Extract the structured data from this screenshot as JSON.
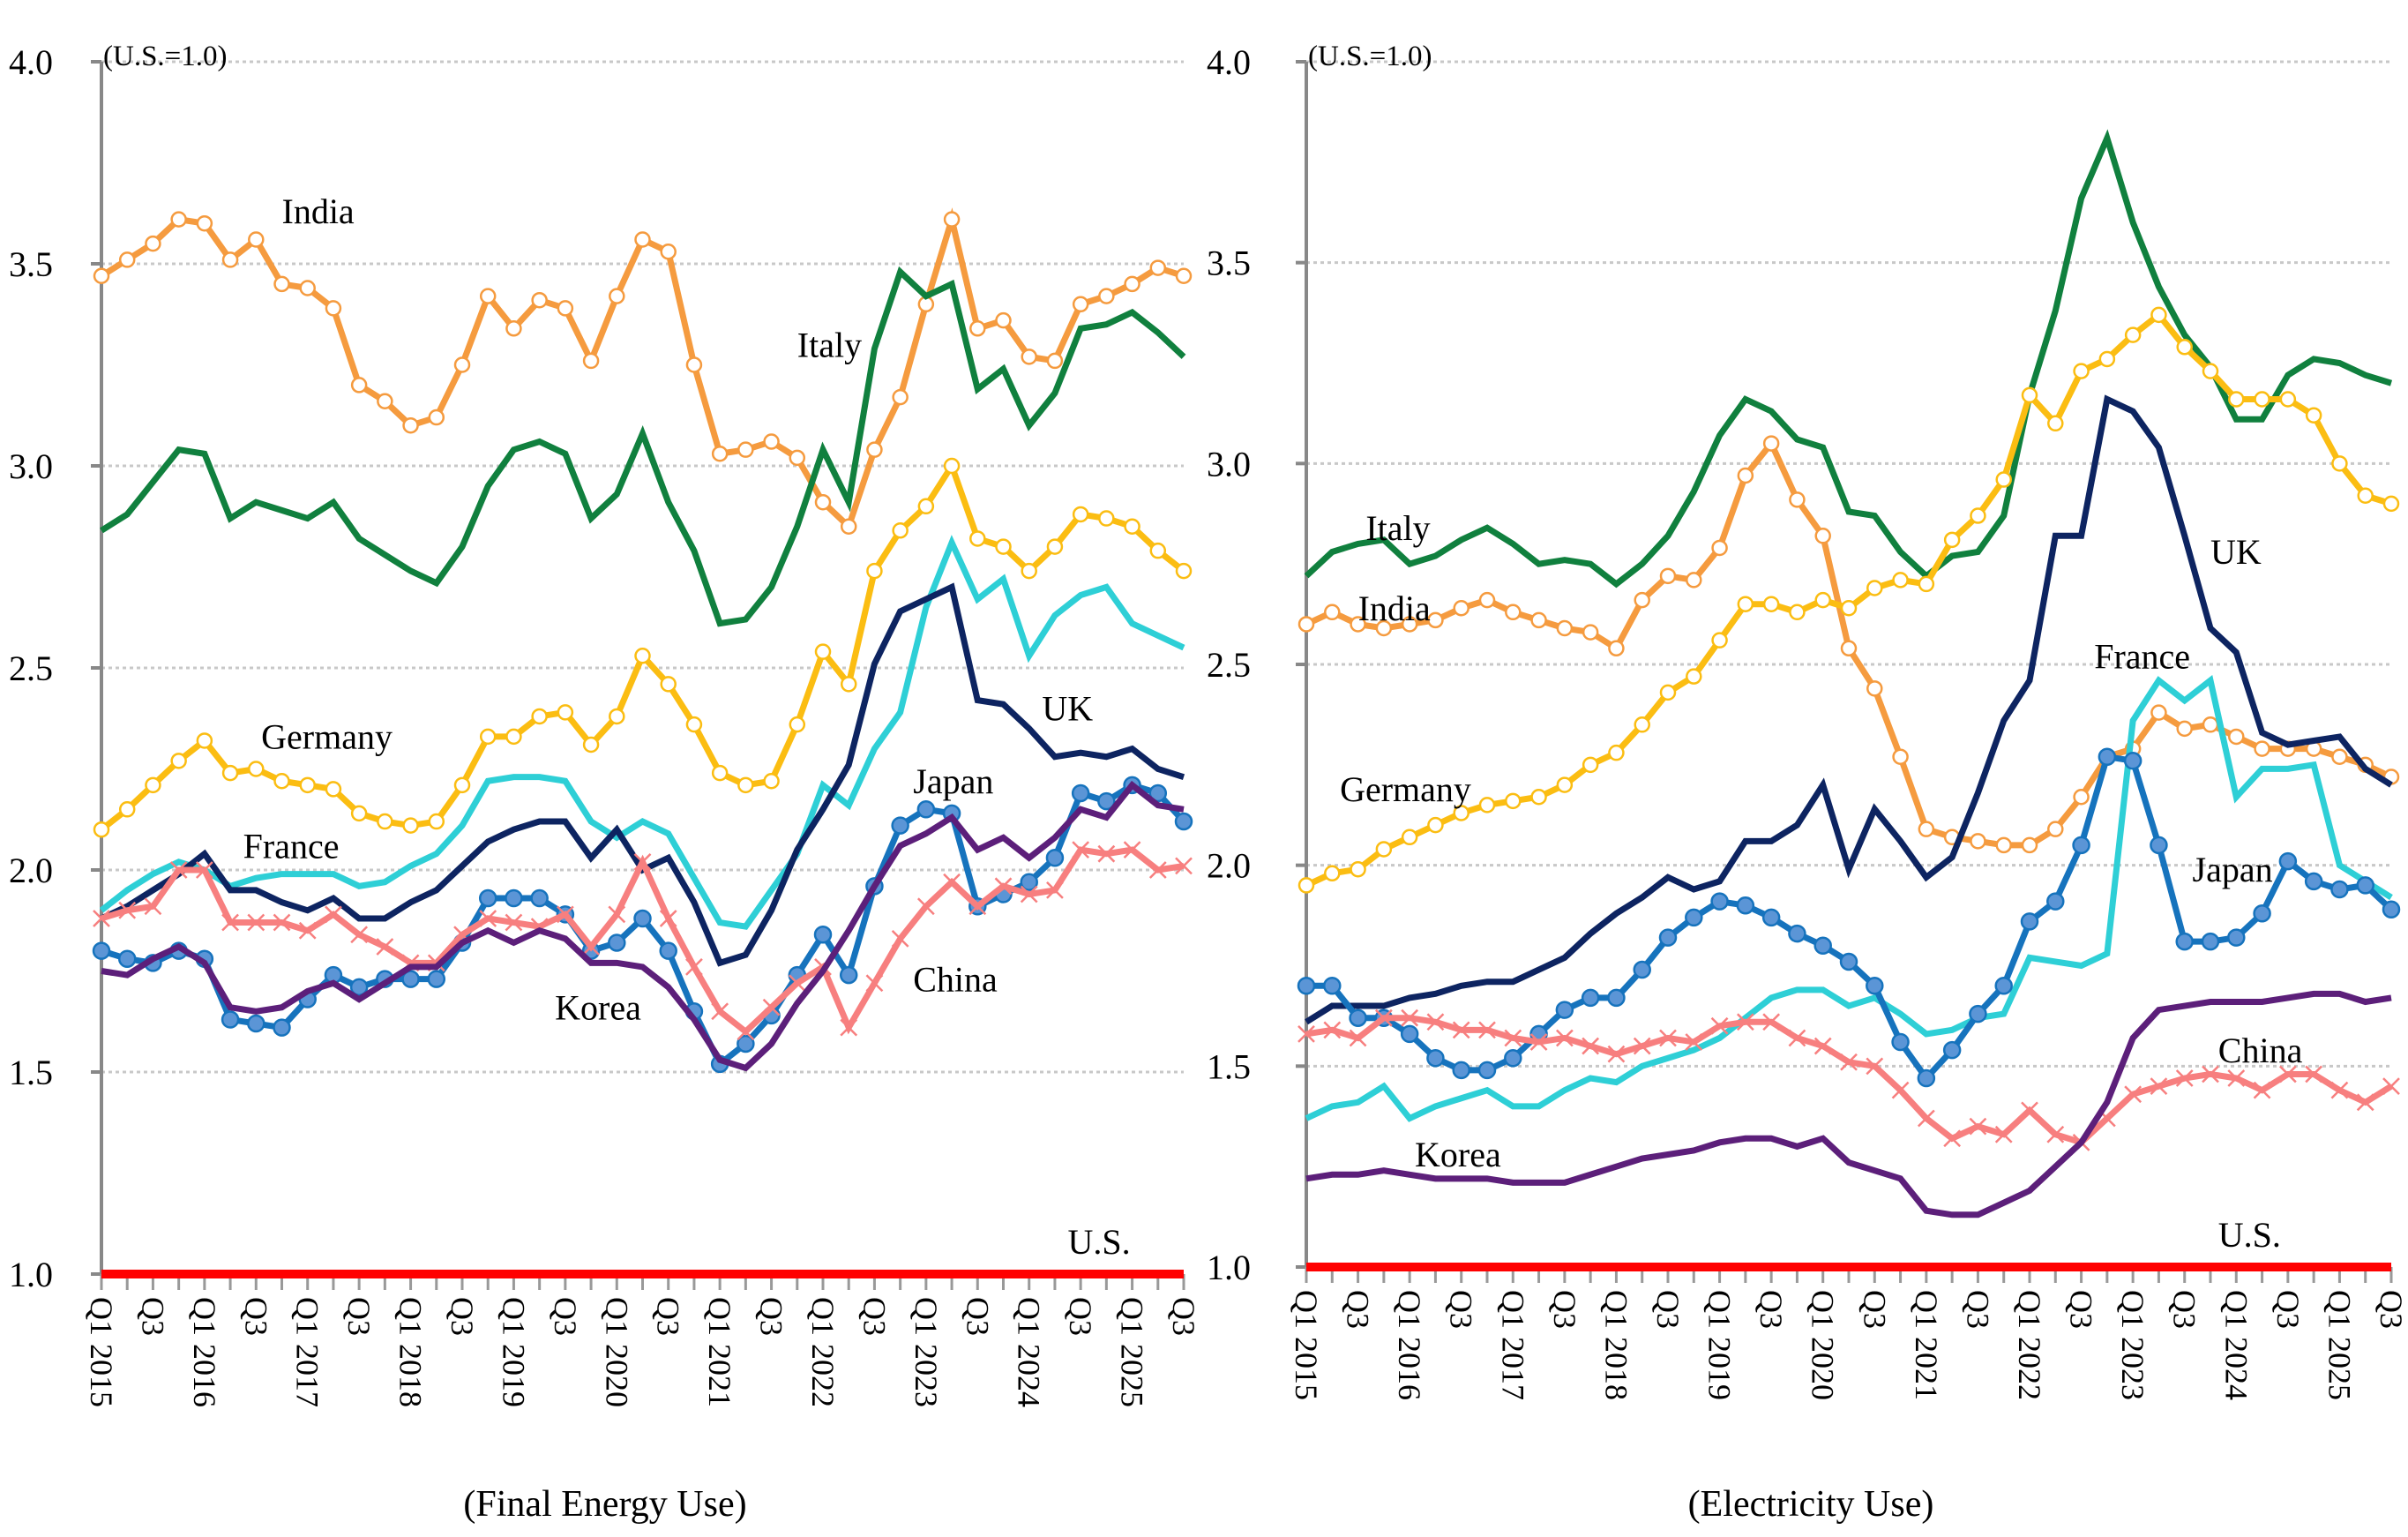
{
  "chart_data": [
    {
      "type": "line",
      "title": "(Final Energy Use)",
      "unit_note": "(U.S.=1.0)",
      "xlabel": "",
      "ylabel": "",
      "ylim": [
        1.0,
        4.0
      ],
      "yticks": [
        "1.0",
        "1.5",
        "2.0",
        "2.5",
        "3.0",
        "3.5",
        "4.0"
      ],
      "ytick_values": [
        1.0,
        1.5,
        2.0,
        2.5,
        3.0,
        3.5,
        4.0
      ],
      "grid": "horizontal-dotted",
      "x_labels": [
        "Q1 2015",
        "Q3",
        "Q1 2016",
        "Q3",
        "Q1 2017",
        "Q3",
        "Q1 2018",
        "Q3",
        "Q1 2019",
        "Q3",
        "Q1 2020",
        "Q3",
        "Q1 2021",
        "Q3",
        "Q1 2022",
        "Q3",
        "Q1 2023",
        "Q3",
        "Q1 2024",
        "Q3",
        "Q1 2025",
        "Q3"
      ],
      "x_count": 43,
      "series": [
        {
          "name": "India",
          "color": "#f59b3f",
          "marker": "open-circle",
          "label_anchor": 5,
          "values": [
            3.47,
            3.51,
            3.55,
            3.61,
            3.6,
            3.51,
            3.56,
            3.45,
            3.44,
            3.39,
            3.2,
            3.16,
            3.1,
            3.12,
            3.25,
            3.42,
            3.34,
            3.41,
            3.39,
            3.26,
            3.42,
            3.56,
            3.53,
            3.25,
            3.03,
            3.04,
            3.06,
            3.02,
            2.91,
            2.85,
            3.04,
            3.17,
            3.4,
            3.61,
            3.34,
            3.36,
            3.27,
            3.26,
            3.4,
            3.42,
            3.45,
            3.49,
            3.47
          ]
        },
        {
          "name": "Italy",
          "color": "#10803e",
          "marker": "none",
          "values": [
            2.84,
            2.88,
            2.96,
            3.04,
            3.03,
            2.87,
            2.91,
            2.89,
            2.87,
            2.91,
            2.82,
            2.78,
            2.74,
            2.71,
            2.8,
            2.95,
            3.04,
            3.06,
            3.03,
            2.87,
            2.93,
            3.08,
            2.91,
            2.79,
            2.61,
            2.62,
            2.7,
            2.85,
            3.04,
            2.91,
            3.29,
            3.48,
            3.42,
            3.45,
            3.19,
            3.24,
            3.1,
            3.18,
            3.34,
            3.35,
            3.38,
            3.33,
            3.27
          ]
        },
        {
          "name": "Germany",
          "color": "#fbbd12",
          "marker": "open-circle",
          "values": [
            2.1,
            2.15,
            2.21,
            2.27,
            2.32,
            2.24,
            2.25,
            2.22,
            2.21,
            2.2,
            2.14,
            2.12,
            2.11,
            2.12,
            2.21,
            2.33,
            2.33,
            2.38,
            2.39,
            2.31,
            2.38,
            2.53,
            2.46,
            2.36,
            2.24,
            2.21,
            2.22,
            2.36,
            2.54,
            2.46,
            2.74,
            2.84,
            2.9,
            3.0,
            2.82,
            2.8,
            2.74,
            2.8,
            2.88,
            2.87,
            2.85,
            2.79,
            2.74
          ]
        },
        {
          "name": "France",
          "color": "#2ecfd6",
          "marker": "none",
          "values": [
            1.9,
            1.95,
            1.99,
            2.02,
            2.0,
            1.96,
            1.98,
            1.99,
            1.99,
            1.99,
            1.96,
            1.97,
            2.01,
            2.04,
            2.11,
            2.22,
            2.23,
            2.23,
            2.22,
            2.12,
            2.08,
            2.12,
            2.09,
            1.98,
            1.87,
            1.86,
            1.95,
            2.04,
            2.21,
            2.16,
            2.3,
            2.39,
            2.65,
            2.81,
            2.67,
            2.72,
            2.53,
            2.63,
            2.68,
            2.7,
            2.61,
            2.58,
            2.55
          ]
        },
        {
          "name": "UK",
          "color": "#0d2461",
          "marker": "none",
          "values": [
            1.88,
            1.91,
            1.95,
            1.99,
            2.04,
            1.95,
            1.95,
            1.92,
            1.9,
            1.93,
            1.88,
            1.88,
            1.92,
            1.95,
            2.01,
            2.07,
            2.1,
            2.12,
            2.12,
            2.03,
            2.1,
            2.0,
            2.03,
            1.92,
            1.77,
            1.79,
            1.9,
            2.05,
            2.15,
            2.26,
            2.51,
            2.64,
            2.67,
            2.7,
            2.42,
            2.41,
            2.35,
            2.28,
            2.29,
            2.28,
            2.3,
            2.25,
            2.23
          ]
        },
        {
          "name": "Japan",
          "color": "#1673bd",
          "marker": "filled-circle",
          "marker_fill": "#5b95d6",
          "values": [
            1.8,
            1.78,
            1.77,
            1.8,
            1.78,
            1.63,
            1.62,
            1.61,
            1.68,
            1.74,
            1.71,
            1.73,
            1.73,
            1.73,
            1.82,
            1.93,
            1.93,
            1.93,
            1.89,
            1.8,
            1.82,
            1.88,
            1.8,
            1.65,
            1.52,
            1.57,
            1.64,
            1.74,
            1.84,
            1.74,
            1.96,
            2.11,
            2.15,
            2.14,
            1.91,
            1.94,
            1.97,
            2.03,
            2.19,
            2.17,
            2.21,
            2.19,
            2.12
          ]
        },
        {
          "name": "China",
          "color": "#f77f7f",
          "marker": "x",
          "values": [
            1.88,
            1.9,
            1.91,
            2.0,
            2.0,
            1.87,
            1.87,
            1.87,
            1.85,
            1.89,
            1.84,
            1.81,
            1.77,
            1.77,
            1.84,
            1.88,
            1.87,
            1.86,
            1.89,
            1.81,
            1.89,
            2.02,
            1.88,
            1.76,
            1.65,
            1.6,
            1.66,
            1.72,
            1.76,
            1.61,
            1.72,
            1.83,
            1.91,
            1.97,
            1.91,
            1.96,
            1.94,
            1.95,
            2.05,
            2.04,
            2.05,
            2.0,
            2.01
          ]
        },
        {
          "name": "Korea",
          "color": "#5c1f7a",
          "marker": "none",
          "values": [
            1.75,
            1.74,
            1.78,
            1.81,
            1.77,
            1.66,
            1.65,
            1.66,
            1.7,
            1.72,
            1.68,
            1.72,
            1.76,
            1.76,
            1.82,
            1.85,
            1.82,
            1.85,
            1.83,
            1.77,
            1.77,
            1.76,
            1.71,
            1.63,
            1.53,
            1.51,
            1.57,
            1.67,
            1.75,
            1.85,
            1.96,
            2.06,
            2.09,
            2.13,
            2.05,
            2.08,
            2.03,
            2.08,
            2.15,
            2.13,
            2.21,
            2.16,
            2.15
          ]
        },
        {
          "name": "U.S.",
          "color": "#ff0000",
          "marker": "none",
          "values": [
            1,
            1,
            1,
            1,
            1,
            1,
            1,
            1,
            1,
            1,
            1,
            1,
            1,
            1,
            1,
            1,
            1,
            1,
            1,
            1,
            1,
            1,
            1,
            1,
            1,
            1,
            1,
            1,
            1,
            1,
            1,
            1,
            1,
            1,
            1,
            1,
            1,
            1,
            1,
            1,
            1,
            1,
            1
          ]
        }
      ],
      "annotations": [
        {
          "text": "India",
          "x_index": 7,
          "y": 3.6
        },
        {
          "text": "Italy",
          "x_index": 27,
          "y": 3.27
        },
        {
          "text": "Germany",
          "x_index": 6.2,
          "y": 2.3
        },
        {
          "text": "France",
          "x_index": 5.5,
          "y": 2.03
        },
        {
          "text": "UK",
          "x_index": 36.5,
          "y": 2.37
        },
        {
          "text": "Japan",
          "x_index": 31.5,
          "y": 2.19
        },
        {
          "text": "China",
          "x_index": 31.5,
          "y": 1.7
        },
        {
          "text": "Korea",
          "x_index": 17.6,
          "y": 1.63
        },
        {
          "text": "U.S.",
          "x_index": 37.5,
          "y": 1.05
        }
      ]
    },
    {
      "type": "line",
      "title": "(Electricity Use)",
      "unit_note": "(U.S.=1.0)",
      "xlabel": "",
      "ylabel": "",
      "ylim": [
        1.0,
        4.0
      ],
      "yticks": [
        "1.0",
        "1.5",
        "2.0",
        "2.5",
        "3.0",
        "3.5",
        "4.0"
      ],
      "ytick_values": [
        1.0,
        1.5,
        2.0,
        2.5,
        3.0,
        3.5,
        4.0
      ],
      "grid": "horizontal-dotted",
      "x_labels": [
        "Q1 2015",
        "Q3",
        "Q1 2016",
        "Q3",
        "Q1 2017",
        "Q3",
        "Q1 2018",
        "Q3",
        "Q1 2019",
        "Q3",
        "Q1 2020",
        "Q3",
        "Q1 2021",
        "Q3",
        "Q1 2022",
        "Q3",
        "Q1 2023",
        "Q3",
        "Q1 2024",
        "Q3",
        "Q1 2025",
        "Q3"
      ],
      "x_count": 43,
      "series": [
        {
          "name": "Italy",
          "color": "#10803e",
          "marker": "none",
          "values": [
            2.72,
            2.78,
            2.8,
            2.81,
            2.75,
            2.77,
            2.81,
            2.84,
            2.8,
            2.75,
            2.76,
            2.75,
            2.7,
            2.75,
            2.82,
            2.93,
            3.07,
            3.16,
            3.13,
            3.06,
            3.04,
            2.88,
            2.87,
            2.78,
            2.72,
            2.77,
            2.78,
            2.87,
            3.17,
            3.38,
            3.66,
            3.81,
            3.6,
            3.44,
            3.32,
            3.24,
            3.11,
            3.11,
            3.22,
            3.26,
            3.25,
            3.22,
            3.2
          ]
        },
        {
          "name": "India",
          "color": "#f59b3f",
          "marker": "open-circle",
          "values": [
            2.6,
            2.63,
            2.6,
            2.59,
            2.6,
            2.61,
            2.64,
            2.66,
            2.63,
            2.61,
            2.59,
            2.58,
            2.54,
            2.66,
            2.72,
            2.71,
            2.79,
            2.97,
            3.05,
            2.91,
            2.82,
            2.54,
            2.44,
            2.27,
            2.09,
            2.07,
            2.06,
            2.05,
            2.05,
            2.09,
            2.17,
            2.27,
            2.29,
            2.38,
            2.34,
            2.35,
            2.32,
            2.29,
            2.29,
            2.29,
            2.27,
            2.25,
            2.22
          ]
        },
        {
          "name": "Germany",
          "color": "#fbbd12",
          "marker": "open-circle",
          "values": [
            1.95,
            1.98,
            1.99,
            2.04,
            2.07,
            2.1,
            2.13,
            2.15,
            2.16,
            2.17,
            2.2,
            2.25,
            2.28,
            2.35,
            2.43,
            2.47,
            2.56,
            2.65,
            2.65,
            2.63,
            2.66,
            2.64,
            2.69,
            2.71,
            2.7,
            2.81,
            2.87,
            2.96,
            3.17,
            3.1,
            3.23,
            3.26,
            3.32,
            3.37,
            3.29,
            3.23,
            3.16,
            3.16,
            3.16,
            3.12,
            3.0,
            2.92,
            2.9
          ]
        },
        {
          "name": "UK",
          "color": "#0d2461",
          "marker": "none",
          "values": [
            1.61,
            1.65,
            1.65,
            1.65,
            1.67,
            1.68,
            1.7,
            1.71,
            1.71,
            1.74,
            1.77,
            1.83,
            1.88,
            1.92,
            1.97,
            1.94,
            1.96,
            2.06,
            2.06,
            2.1,
            2.2,
            1.99,
            2.14,
            2.06,
            1.97,
            2.02,
            2.18,
            2.36,
            2.46,
            2.82,
            2.82,
            3.16,
            3.13,
            3.04,
            2.82,
            2.59,
            2.53,
            2.33,
            2.3,
            2.31,
            2.32,
            2.24,
            2.2
          ]
        },
        {
          "name": "France",
          "color": "#2ecfd6",
          "marker": "none",
          "values": [
            1.37,
            1.4,
            1.41,
            1.45,
            1.37,
            1.4,
            1.42,
            1.44,
            1.4,
            1.4,
            1.44,
            1.47,
            1.46,
            1.5,
            1.52,
            1.54,
            1.57,
            1.62,
            1.67,
            1.69,
            1.69,
            1.65,
            1.67,
            1.63,
            1.58,
            1.59,
            1.62,
            1.63,
            1.77,
            1.76,
            1.75,
            1.78,
            2.36,
            2.46,
            2.41,
            2.46,
            2.17,
            2.24,
            2.24,
            2.25,
            2.0,
            1.96,
            1.92
          ]
        },
        {
          "name": "Japan",
          "color": "#1673bd",
          "marker": "filled-circle",
          "marker_fill": "#5b95d6",
          "values": [
            1.7,
            1.7,
            1.62,
            1.62,
            1.58,
            1.52,
            1.49,
            1.49,
            1.52,
            1.58,
            1.64,
            1.67,
            1.67,
            1.74,
            1.82,
            1.87,
            1.91,
            1.9,
            1.87,
            1.83,
            1.8,
            1.76,
            1.7,
            1.56,
            1.47,
            1.54,
            1.63,
            1.7,
            1.86,
            1.91,
            2.05,
            2.27,
            2.26,
            2.05,
            1.81,
            1.81,
            1.82,
            1.88,
            2.01,
            1.96,
            1.94,
            1.95,
            1.89
          ]
        },
        {
          "name": "China",
          "color": "#f77f7f",
          "marker": "x",
          "values": [
            1.58,
            1.59,
            1.57,
            1.62,
            1.62,
            1.61,
            1.59,
            1.59,
            1.57,
            1.56,
            1.57,
            1.55,
            1.53,
            1.55,
            1.57,
            1.56,
            1.6,
            1.61,
            1.61,
            1.57,
            1.55,
            1.51,
            1.5,
            1.44,
            1.37,
            1.32,
            1.35,
            1.33,
            1.39,
            1.33,
            1.31,
            1.37,
            1.43,
            1.45,
            1.47,
            1.48,
            1.47,
            1.44,
            1.48,
            1.48,
            1.44,
            1.41,
            1.45
          ]
        },
        {
          "name": "Korea",
          "color": "#5c1f7a",
          "marker": "none",
          "values": [
            1.22,
            1.23,
            1.23,
            1.24,
            1.23,
            1.22,
            1.22,
            1.22,
            1.21,
            1.21,
            1.21,
            1.23,
            1.25,
            1.27,
            1.28,
            1.29,
            1.31,
            1.32,
            1.32,
            1.3,
            1.32,
            1.26,
            1.24,
            1.22,
            1.14,
            1.13,
            1.13,
            1.16,
            1.19,
            1.25,
            1.31,
            1.41,
            1.57,
            1.64,
            1.65,
            1.66,
            1.66,
            1.66,
            1.67,
            1.68,
            1.68,
            1.66,
            1.67
          ]
        },
        {
          "name": "U.S.",
          "color": "#ff0000",
          "marker": "none",
          "values": [
            1,
            1,
            1,
            1,
            1,
            1,
            1,
            1,
            1,
            1,
            1,
            1,
            1,
            1,
            1,
            1,
            1,
            1,
            1,
            1,
            1,
            1,
            1,
            1,
            1,
            1,
            1,
            1,
            1,
            1,
            1,
            1,
            1,
            1,
            1,
            1,
            1,
            1,
            1,
            1,
            1,
            1,
            1
          ]
        }
      ],
      "annotations": [
        {
          "text": "Italy",
          "x_index": 2.3,
          "y": 2.81
        },
        {
          "text": "India",
          "x_index": 2.0,
          "y": 2.61
        },
        {
          "text": "Germany",
          "x_index": 1.3,
          "y": 2.16
        },
        {
          "text": "UK",
          "x_index": 35.0,
          "y": 2.75
        },
        {
          "text": "France",
          "x_index": 30.5,
          "y": 2.49
        },
        {
          "text": "Japan",
          "x_index": 34.3,
          "y": 1.96
        },
        {
          "text": "China",
          "x_index": 35.3,
          "y": 1.51
        },
        {
          "text": "Korea",
          "x_index": 4.2,
          "y": 1.25
        },
        {
          "text": "U.S.",
          "x_index": 35.3,
          "y": 1.05
        }
      ]
    }
  ]
}
